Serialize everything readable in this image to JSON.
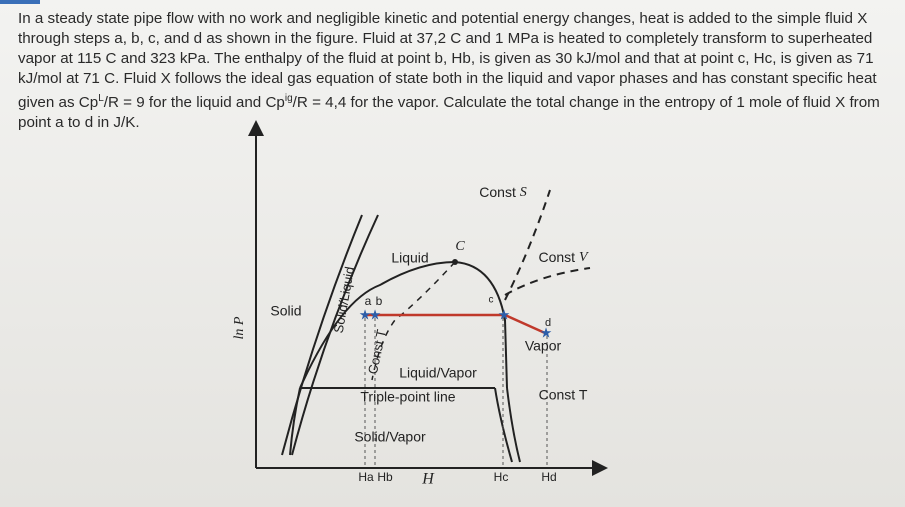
{
  "problem": {
    "text_1": "In a steady state pipe flow with no work and negligible kinetic and potential energy changes, heat is added to the simple fluid X through steps a, b, c, and d as shown in the figure. Fluid at 37,2 C and 1 MPa is heated to completely transform to superheated vapor at 115 C and 323 kPa. The enthalpy of the fluid at point b, Hb, is given as 30 kJ/mol and that at point c, Hc, is given as 71 kJ/mol at 71 C. Fluid X follows the ideal gas equation of state both in the liquid and vapor phases and has constant specific heat given as Cp",
    "sup_1": "L",
    "text_2": "/R = 9 for the liquid and Cp",
    "sup_2": "ig",
    "text_3": "/R = 4,4 for the vapor. Calculate the total change in the entropy of 1 mole of fluid X from point a to d in J/K."
  },
  "figure": {
    "y_axis_label": "ln P",
    "x_axis_label": "H",
    "regions": {
      "solid": "Solid",
      "solid_liquid": "Solid/Liquid",
      "liquid": "Liquid",
      "liquid_vapor": "Liquid/Vapor",
      "solid_vapor": "Solid/Vapor",
      "vapor": "Vapor",
      "triple_point": "Triple-point line"
    },
    "critical_point": "C",
    "lines": {
      "const_s_word": "Const",
      "const_s_symbol": "S",
      "const_v_word": "Const",
      "const_v_symbol": "V",
      "const_t_left": "Const T",
      "const_t_right": "Const T"
    },
    "points": {
      "a": "a",
      "b": "b",
      "c": "c",
      "d": "d"
    },
    "enthalpies": {
      "ha": "Ha",
      "hb": "Hb",
      "hc": "Hc",
      "hd": "Hd"
    }
  }
}
